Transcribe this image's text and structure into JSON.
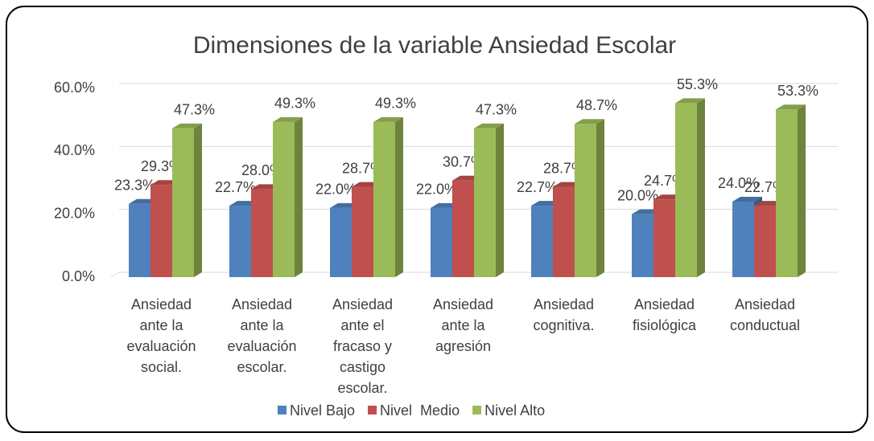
{
  "chart_data": {
    "type": "bar3d",
    "title": "Dimensiones de la variable Ansiedad Escolar",
    "categories": [
      "Ansiedad ante la evaluación social.",
      "Ansiedad ante la evaluación escolar.",
      "Ansiedad ante el fracaso y castigo escolar.",
      "Ansiedad ante la agresión",
      "Ansiedad cognitiva.",
      "Ansiedad fisiológica",
      "Ansiedad conductual"
    ],
    "series": [
      {
        "name": "Nivel Bajo",
        "color": "#4f81bd",
        "values": [
          23.3,
          22.7,
          22.0,
          22.0,
          22.7,
          20.0,
          24.0
        ],
        "value_labels": [
          "23.3%",
          "22.7%",
          "22.0%",
          "22.0%",
          "22.7%",
          "20.0%",
          "24.0%"
        ]
      },
      {
        "name": "Nivel  Medio",
        "color": "#c0504d",
        "values": [
          29.3,
          28.0,
          28.7,
          30.7,
          28.7,
          24.7,
          22.7
        ],
        "value_labels": [
          "29.3%",
          "28.0%",
          "28.7%",
          "30.7%",
          "28.7%",
          "24.7%",
          "22.7%"
        ]
      },
      {
        "name": "Nivel Alto",
        "color": "#9bbb59",
        "values": [
          47.3,
          49.3,
          49.3,
          47.3,
          48.7,
          55.3,
          53.3
        ],
        "value_labels": [
          "47.3%",
          "49.3%",
          "49.3%",
          "47.3%",
          "48.7%",
          "55.3%",
          "53.3%"
        ]
      }
    ],
    "ylim": [
      0,
      60
    ],
    "yticks": [
      {
        "value": 0,
        "label": "0.0%"
      },
      {
        "value": 20,
        "label": "20.0%"
      },
      {
        "value": 40,
        "label": "40.0%"
      },
      {
        "value": 60,
        "label": "60.0%"
      }
    ],
    "grid": true,
    "legend": "bottom"
  }
}
